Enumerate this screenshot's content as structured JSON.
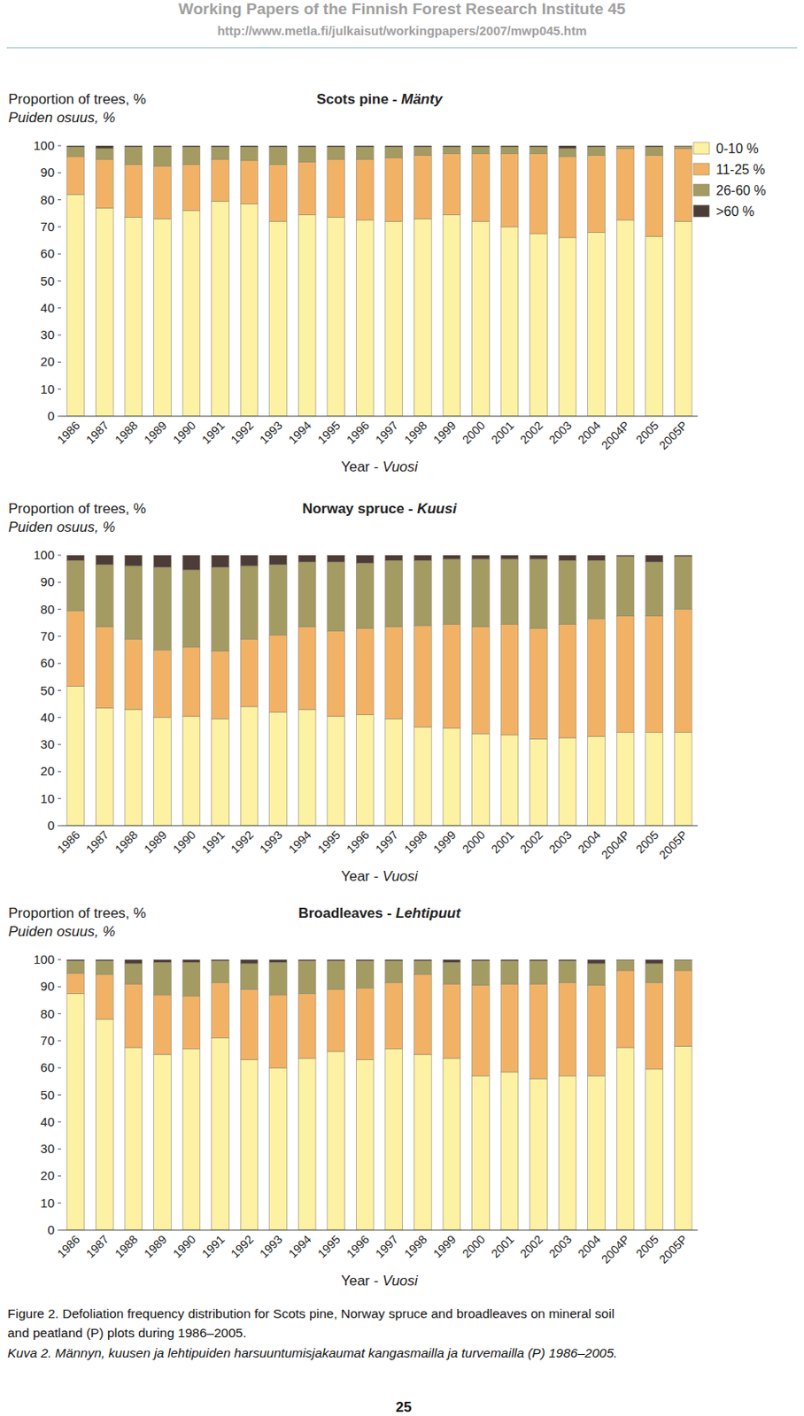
{
  "page": {
    "header": "Working Papers of the Finnish Forest Research Institute 45",
    "url": "http://www.metla.fi/julkaisut/workingpapers/2007/mwp045.htm",
    "caption": [
      "Figure 2. Defoliation frequency distribution for Scots pine, Norway spruce and broadleaves on mineral soil",
      "and peatland (P) plots during 1986–2005."
    ],
    "caption_fi": "Kuva 2. Männyn, kuusen ja lehtipuiden harsuuntumisjakaumat kangasmailla ja turvemailla (P) 1986–2005.",
    "page_number": "25"
  },
  "chart_data": [
    {
      "type": "bar",
      "stacked": true,
      "title": "Scots pine - Mänty",
      "y_label": [
        "Proportion of trees, %",
        "Puiden osuus, %"
      ],
      "x_label": "Year - Vuosi",
      "categories": [
        "1986",
        "1987",
        "1988",
        "1989",
        "1990",
        "1991",
        "1992",
        "1993",
        "1994",
        "1995",
        "1996",
        "1997",
        "1998",
        "1999",
        "2000",
        "2001",
        "2002",
        "2003",
        "2004",
        "2004P",
        "2005",
        "2005P"
      ],
      "ylim": [
        0,
        100
      ],
      "yticks": [
        0,
        10,
        20,
        30,
        40,
        50,
        60,
        70,
        80,
        90,
        100
      ],
      "grid": false,
      "legend": "right",
      "series": [
        {
          "name": "0-10 %",
          "color": "#fdf1a3",
          "values": [
            82,
            77,
            73.5,
            73,
            76,
            79.5,
            78.5,
            72,
            74.5,
            73.5,
            72.5,
            72,
            73,
            74.5,
            72,
            70,
            67.5,
            66,
            68,
            72.5,
            66.5,
            72
          ]
        },
        {
          "name": "11-25 %",
          "color": "#f1b266",
          "values": [
            14,
            18,
            19.5,
            19.5,
            17,
            15.5,
            16,
            21,
            19.5,
            21.5,
            22.5,
            23.5,
            23.5,
            22.5,
            25,
            27,
            29.5,
            30,
            28.5,
            26.5,
            30,
            27
          ]
        },
        {
          "name": "26-60 %",
          "color": "#a39b62",
          "values": [
            3.5,
            4,
            6.5,
            7,
            6.5,
            4.5,
            5,
            6.5,
            5.5,
            4.5,
            4.5,
            4,
            3,
            2.5,
            2.5,
            2.5,
            2.5,
            3,
            3,
            0.8,
            3,
            0.8
          ]
        },
        {
          "name": ">60 %",
          "color": "#4c3c37",
          "values": [
            0.5,
            1,
            0.5,
            0.5,
            0.5,
            0.5,
            0.5,
            0.5,
            0.5,
            0.5,
            0.5,
            0.5,
            0.5,
            0.5,
            0.5,
            0.5,
            0.5,
            1,
            0.5,
            0.2,
            0.5,
            0.2
          ]
        }
      ]
    },
    {
      "type": "bar",
      "stacked": true,
      "title": "Norway spruce - Kuusi",
      "y_label": [
        "Proportion of trees, %",
        "Puiden osuus, %"
      ],
      "x_label": "Year - Vuosi",
      "categories": [
        "1986",
        "1987",
        "1988",
        "1989",
        "1990",
        "1991",
        "1992",
        "1993",
        "1994",
        "1995",
        "1996",
        "1997",
        "1998",
        "1999",
        "2000",
        "2001",
        "2002",
        "2003",
        "2004",
        "2004P",
        "2005",
        "2005P"
      ],
      "ylim": [
        0,
        100
      ],
      "yticks": [
        0,
        10,
        20,
        30,
        40,
        50,
        60,
        70,
        80,
        90,
        100
      ],
      "grid": false,
      "series": [
        {
          "name": "0-10 %",
          "color": "#fdf1a3",
          "values": [
            51.5,
            43.5,
            43,
            40,
            40.5,
            39.5,
            44,
            42,
            43,
            40.5,
            41,
            39.5,
            36.5,
            36,
            34,
            33.5,
            32,
            32.5,
            33,
            34.5,
            34.5,
            34.5
          ]
        },
        {
          "name": "11-25 %",
          "color": "#f1b266",
          "values": [
            28,
            30,
            26,
            25,
            25.5,
            25,
            25,
            28.5,
            30.5,
            31.5,
            32,
            34,
            37.5,
            38.5,
            39.5,
            41,
            41,
            42,
            43.5,
            43,
            43,
            45.5
          ]
        },
        {
          "name": "26-60 %",
          "color": "#a39b62",
          "values": [
            18.5,
            23,
            27,
            30.5,
            28.5,
            31,
            27,
            26,
            24,
            25.5,
            24,
            24.5,
            24,
            24,
            25,
            24,
            25.5,
            23.5,
            21.5,
            22,
            20,
            19.5
          ]
        },
        {
          "name": ">60 %",
          "color": "#4c3c37",
          "values": [
            2,
            3.5,
            4,
            4.5,
            5.5,
            4.5,
            4,
            3.5,
            2.5,
            2.5,
            3,
            2,
            2,
            1.5,
            1.5,
            1.5,
            1.5,
            2,
            2,
            0.5,
            2.5,
            0.5
          ]
        }
      ]
    },
    {
      "type": "bar",
      "stacked": true,
      "title": "Broadleaves - Lehtipuut",
      "y_label": [
        "Proportion of trees, %",
        "Puiden osuus, %"
      ],
      "x_label": "Year - Vuosi",
      "categories": [
        "1986",
        "1987",
        "1988",
        "1989",
        "1990",
        "1991",
        "1992",
        "1993",
        "1994",
        "1995",
        "1996",
        "1997",
        "1998",
        "1999",
        "2000",
        "2001",
        "2002",
        "2003",
        "2004",
        "2004P",
        "2005",
        "2005P"
      ],
      "ylim": [
        0,
        100
      ],
      "yticks": [
        0,
        10,
        20,
        30,
        40,
        50,
        60,
        70,
        80,
        90,
        100
      ],
      "grid": false,
      "series": [
        {
          "name": "0-10 %",
          "color": "#fdf1a3",
          "values": [
            87.5,
            78,
            67.5,
            65,
            67,
            71,
            63,
            60,
            63.5,
            66,
            63,
            67,
            65,
            63.5,
            57,
            58.5,
            56,
            57,
            57,
            67.5,
            59.5,
            68
          ]
        },
        {
          "name": "11-25 %",
          "color": "#f1b266",
          "values": [
            7.5,
            16.5,
            23.5,
            22,
            19.5,
            20.5,
            26,
            27,
            24,
            23,
            26.5,
            24.5,
            29.5,
            27.5,
            33.5,
            32.5,
            35,
            34.5,
            33.5,
            28.5,
            32,
            28
          ]
        },
        {
          "name": "26-60 %",
          "color": "#a39b62",
          "values": [
            4.5,
            5,
            7.5,
            12,
            12.5,
            8,
            9.5,
            12,
            12,
            10.5,
            10,
            8,
            5,
            8,
            9,
            8.5,
            8.5,
            8,
            8,
            3.8,
            7,
            3.8
          ]
        },
        {
          "name": ">60 %",
          "color": "#4c3c37",
          "values": [
            0.5,
            0.5,
            1.5,
            1,
            1,
            0.5,
            1.5,
            1,
            0.5,
            0.5,
            0.5,
            0.5,
            0.5,
            1,
            0.5,
            0.5,
            0.5,
            0.5,
            1.5,
            0.2,
            1.5,
            0.2
          ]
        }
      ]
    }
  ]
}
